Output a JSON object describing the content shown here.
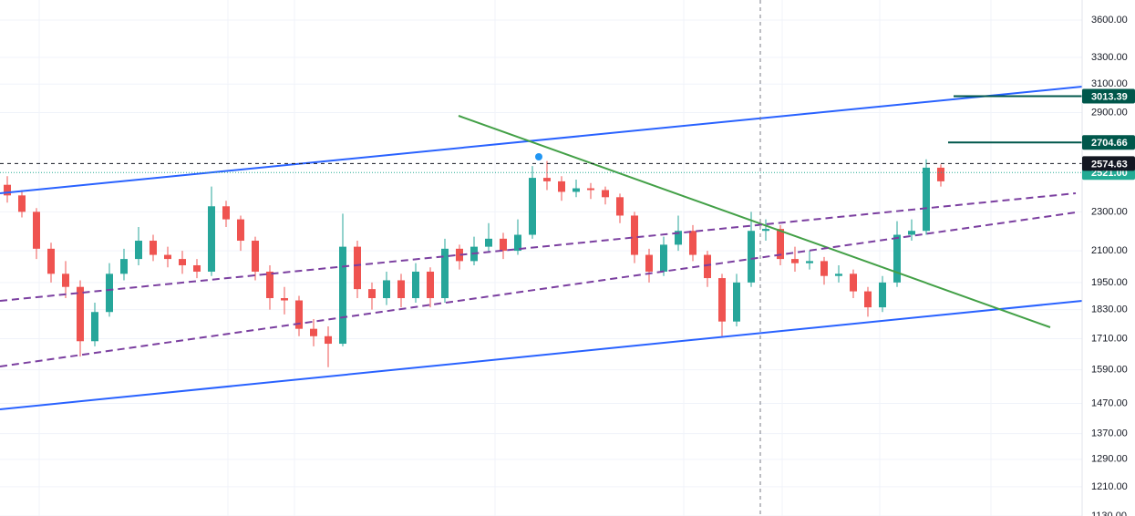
{
  "chart_data": {
    "type": "candlestick",
    "log_scale": true,
    "grid": true,
    "up_color": "#26a69a",
    "down_color": "#ef5350",
    "ylim": [
      1130,
      3773
    ],
    "yticks": [
      {
        "value": 3600,
        "label": "3600.00"
      },
      {
        "value": 3300,
        "label": "3300.00"
      },
      {
        "value": 3100,
        "label": "3100.00"
      },
      {
        "value": 2900,
        "label": "2900.00"
      },
      {
        "value": 2300,
        "label": "2300.00"
      },
      {
        "value": 2100,
        "label": "2100.00"
      },
      {
        "value": 1950,
        "label": "1950.00"
      },
      {
        "value": 1830,
        "label": "1830.00"
      },
      {
        "value": 1710,
        "label": "1710.00"
      },
      {
        "value": 1590,
        "label": "1590.00"
      },
      {
        "value": 1470,
        "label": "1470.00"
      },
      {
        "value": 1370,
        "label": "1370.00"
      },
      {
        "value": 1290,
        "label": "1290.00"
      },
      {
        "value": 1210,
        "label": "1210.00"
      },
      {
        "value": 1130,
        "label": "1130.00"
      }
    ],
    "open": [
      2450,
      2390,
      2300,
      2110,
      1990,
      1930,
      1700,
      1820,
      1990,
      2060,
      2150,
      2080,
      2060,
      2030,
      2000,
      2330,
      2260,
      2150,
      2000,
      1880,
      1870,
      1750,
      1720,
      1690,
      2120,
      1920,
      1880,
      1960,
      1880,
      2000,
      1880,
      2110,
      2050,
      2120,
      2160,
      2100,
      2180,
      2490,
      2470,
      2410,
      2430,
      2420,
      2380,
      2280,
      2080,
      2000,
      2130,
      2200,
      2080,
      1970,
      1780,
      1950,
      2200,
      2210,
      2060,
      2040,
      2050,
      1980,
      1990,
      1910,
      1840,
      1950,
      2180,
      2200,
      2550
    ],
    "high": [
      2500,
      2420,
      2320,
      2140,
      2050,
      1960,
      1860,
      2040,
      2110,
      2220,
      2180,
      2120,
      2100,
      2060,
      2440,
      2360,
      2280,
      2170,
      2030,
      1930,
      1890,
      1790,
      1760,
      2290,
      2150,
      1950,
      2000,
      1990,
      2040,
      2020,
      2160,
      2130,
      2170,
      2240,
      2190,
      2260,
      2560,
      2590,
      2500,
      2480,
      2460,
      2440,
      2400,
      2300,
      2110,
      2170,
      2280,
      2230,
      2100,
      1990,
      1990,
      2300,
      2260,
      2230,
      2120,
      2100,
      2070,
      2030,
      2010,
      1930,
      1980,
      2250,
      2260,
      2600,
      2570
    ],
    "low": [
      2350,
      2270,
      2060,
      1950,
      1880,
      1640,
      1680,
      1800,
      1960,
      2030,
      2050,
      2020,
      1990,
      1970,
      1980,
      2220,
      2100,
      1960,
      1830,
      1810,
      1720,
      1680,
      1600,
      1680,
      1880,
      1830,
      1850,
      1840,
      1860,
      1840,
      1860,
      2010,
      2030,
      2090,
      2060,
      2080,
      2160,
      2420,
      2360,
      2380,
      2370,
      2340,
      2240,
      2040,
      1950,
      1980,
      2100,
      2050,
      1930,
      1720,
      1760,
      1930,
      2150,
      2030,
      2000,
      2010,
      1940,
      1950,
      1880,
      1800,
      1820,
      1930,
      2150,
      2180,
      2440
    ],
    "close": [
      2390,
      2300,
      2110,
      1990,
      1930,
      1700,
      1820,
      1990,
      2060,
      2150,
      2080,
      2060,
      2030,
      2000,
      2330,
      2260,
      2150,
      2000,
      1880,
      1870,
      1750,
      1720,
      1690,
      2120,
      1920,
      1880,
      1960,
      1880,
      2000,
      1880,
      2110,
      2050,
      2120,
      2160,
      2100,
      2180,
      2490,
      2470,
      2410,
      2430,
      2420,
      2380,
      2280,
      2080,
      2000,
      2130,
      2200,
      2080,
      1970,
      1780,
      1950,
      2200,
      2210,
      2060,
      2040,
      2050,
      1980,
      1990,
      1910,
      1840,
      1950,
      2180,
      2200,
      2550,
      2470
    ],
    "price_lines": [
      {
        "value": 3013.39,
        "label": "3013.39",
        "color": "#00574b"
      },
      {
        "value": 2704.66,
        "label": "2704.66",
        "color": "#00574b"
      },
      {
        "value": 2521,
        "label": "2521.00",
        "color": "#22ab94"
      },
      {
        "value": 2574.63,
        "label": "2574.63",
        "color": "#131722"
      }
    ]
  }
}
